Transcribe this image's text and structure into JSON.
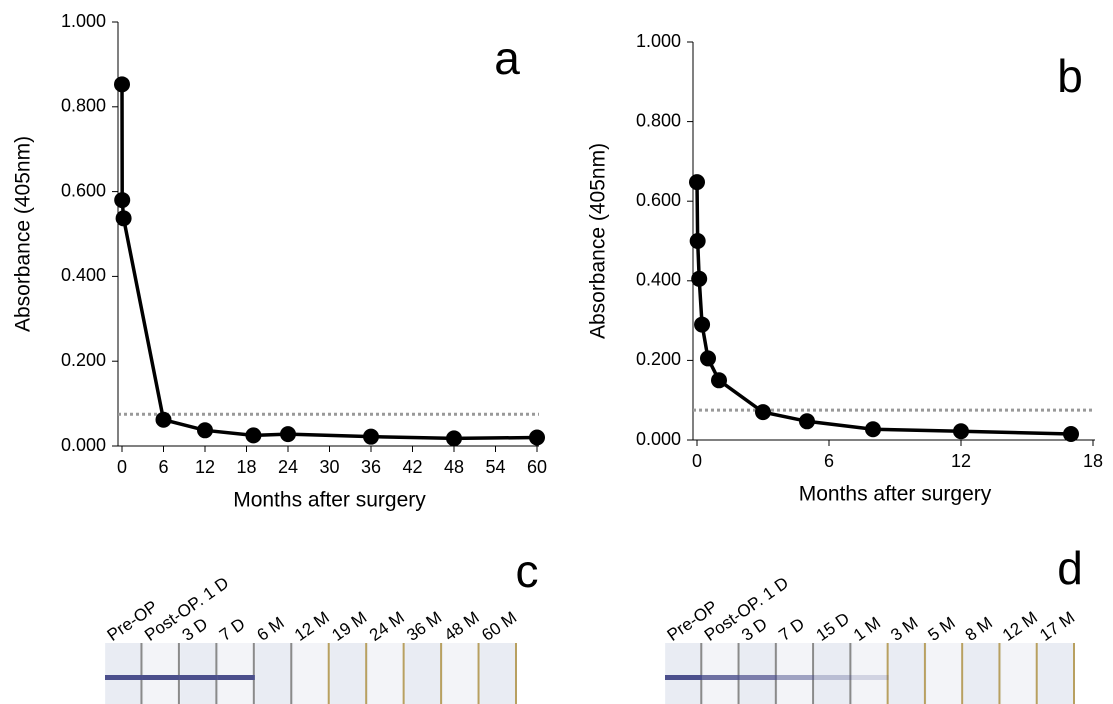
{
  "chart_data": [
    {
      "type": "line",
      "panel_label": "a",
      "y_label": "Absorbance (405nm)",
      "x_label": "Months after surgery",
      "x": [
        0,
        0.03,
        0.23,
        6,
        12,
        19,
        24,
        36,
        48,
        60
      ],
      "values": [
        0.853,
        0.58,
        0.537,
        0.062,
        0.037,
        0.025,
        0.028,
        0.022,
        0.018,
        0.02
      ],
      "color": "#000000",
      "threshold": 0.075,
      "threshold_color": "#999999",
      "xlim": [
        0,
        60
      ],
      "xticks": [
        0,
        6,
        12,
        18,
        24,
        30,
        36,
        42,
        48,
        54,
        60
      ],
      "ylim": [
        0,
        1
      ],
      "yticks": [
        {
          "value": 0,
          "label": "0.000"
        },
        {
          "value": 0.2,
          "label": "0.200"
        },
        {
          "value": 0.4,
          "label": "0.400"
        },
        {
          "value": 0.6,
          "label": "0.600"
        },
        {
          "value": 0.8,
          "label": "0.800"
        },
        {
          "value": 1,
          "label": "1.000"
        }
      ]
    },
    {
      "type": "line",
      "panel_label": "b",
      "y_label": "Absorbance (405nm)",
      "x_label": "Months after surgery",
      "x": [
        0,
        0.03,
        0.1,
        0.23,
        0.5,
        1,
        3,
        5,
        8,
        12,
        17
      ],
      "values": [
        0.648,
        0.5,
        0.405,
        0.29,
        0.205,
        0.15,
        0.07,
        0.047,
        0.027,
        0.022,
        0.015
      ],
      "color": "#000000",
      "threshold": 0.075,
      "threshold_color": "#999999",
      "xlim": [
        0,
        18
      ],
      "xticks": [
        0,
        6,
        12,
        18
      ],
      "ylim": [
        0,
        1
      ],
      "yticks": [
        {
          "value": 0,
          "label": "0.000"
        },
        {
          "value": 0.2,
          "label": "0.200"
        },
        {
          "value": 0.4,
          "label": "0.400"
        },
        {
          "value": 0.6,
          "label": "0.600"
        },
        {
          "value": 0.8,
          "label": "0.800"
        },
        {
          "value": 1,
          "label": "1.000"
        }
      ]
    }
  ],
  "strips": [
    {
      "panel_label": "c",
      "lanes": [
        "Pre-OP",
        "Post-OP. 1 D",
        "3 D",
        "7 D",
        "6 M",
        "12 M",
        "19 M",
        "24 M",
        "36 M",
        "48 M",
        "60 M"
      ]
    },
    {
      "panel_label": "d",
      "lanes": [
        "Pre-OP",
        "Post-OP. 1 D",
        "3 D",
        "7 D",
        "15 D",
        "1 M",
        "3 M",
        "5 M",
        "8 M",
        "12 M",
        "17 M"
      ]
    }
  ]
}
